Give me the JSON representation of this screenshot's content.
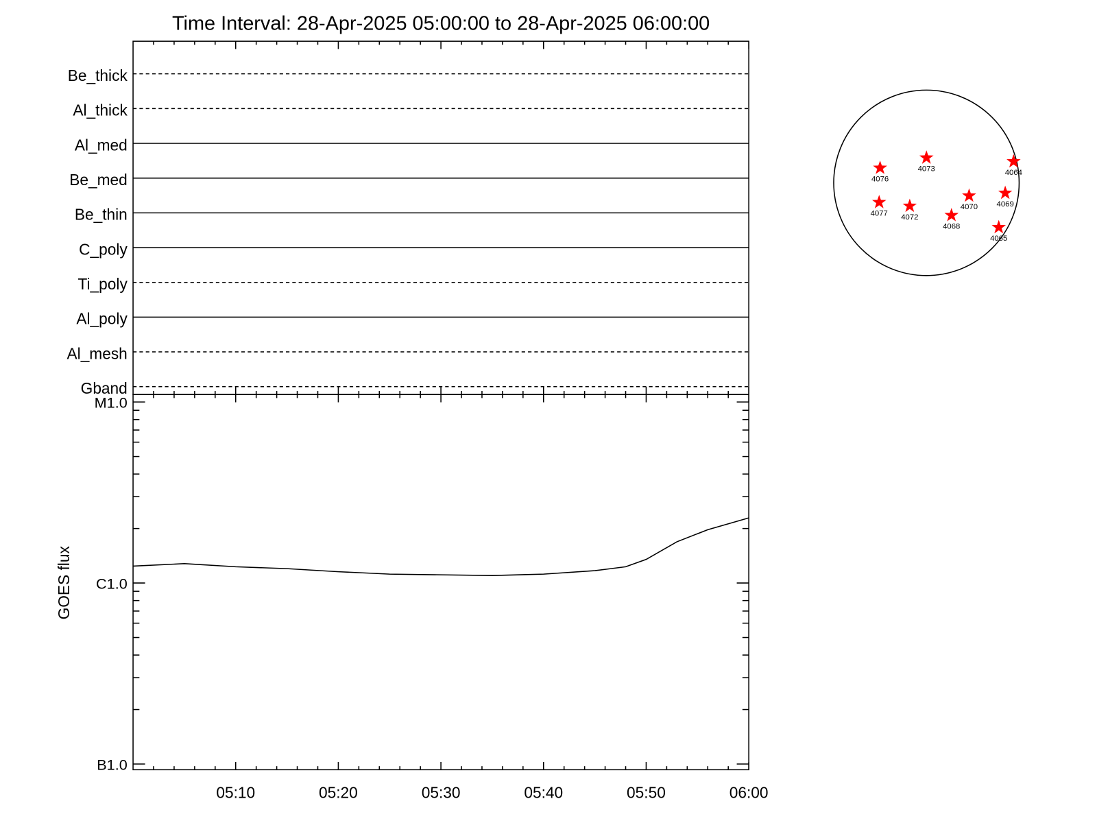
{
  "chart_data": [
    {
      "type": "timeline",
      "title": "Time Interval: 28-Apr-2025 05:00:00 to 28-Apr-2025 06:00:00",
      "categories": [
        "Be_thick",
        "Al_thick",
        "Al_med",
        "Be_med",
        "Be_thin",
        "C_poly",
        "Ti_poly",
        "Al_poly",
        "Al_mesh",
        "Gband"
      ],
      "line_styles": [
        "dashed",
        "dashed",
        "solid",
        "solid",
        "solid",
        "solid",
        "dashed",
        "solid",
        "dashed",
        "dashed"
      ]
    },
    {
      "type": "line",
      "ylabel": "GOES flux",
      "x": [
        "05:00",
        "05:05",
        "05:10",
        "05:15",
        "05:20",
        "05:25",
        "05:30",
        "05:35",
        "05:40",
        "05:45",
        "05:48",
        "05:50",
        "05:53",
        "05:56",
        "06:00"
      ],
      "values": [
        1.24e-06,
        1.28e-06,
        1.23e-06,
        1.2e-06,
        1.155e-06,
        1.12e-06,
        1.11e-06,
        1.1e-06,
        1.12e-06,
        1.17e-06,
        1.23e-06,
        1.35e-06,
        1.69e-06,
        1.97e-06,
        2.29e-06
      ],
      "color": "#000000",
      "xlim": [
        "05:00",
        "06:00"
      ],
      "xticks": [
        "05:10",
        "05:20",
        "05:30",
        "05:40",
        "05:50",
        "06:00"
      ],
      "xticks_minor": [
        "05:02",
        "05:04",
        "05:06",
        "05:08",
        "05:12",
        "05:14",
        "05:16",
        "05:18",
        "05:22",
        "05:24",
        "05:26",
        "05:28",
        "05:32",
        "05:34",
        "05:36",
        "05:38",
        "05:42",
        "05:44",
        "05:46",
        "05:48",
        "05:52",
        "05:54",
        "05:56",
        "05:58"
      ],
      "ylog": true,
      "ylim": [
        9.3e-08,
        1.1e-05
      ],
      "yticks": [
        {
          "value": 1e-07,
          "label": "B1.0"
        },
        {
          "value": 1e-06,
          "label": "C1.0"
        },
        {
          "value": 1e-05,
          "label": "M1.0"
        }
      ],
      "yticks_minor": [
        2e-07,
        3e-07,
        4e-07,
        5e-07,
        6e-07,
        7e-07,
        8e-07,
        9e-07,
        2e-06,
        3e-06,
        4e-06,
        5e-06,
        6e-06,
        7e-06,
        8e-06,
        9e-06
      ]
    },
    {
      "type": "disk",
      "xlim": [
        -1,
        1
      ],
      "ylim": [
        -1,
        1
      ],
      "marker_color": "#ff0000",
      "points": [
        {
          "label": "4076",
          "x": -0.5,
          "y": 0.16
        },
        {
          "label": "4073",
          "x": 0.0,
          "y": 0.27
        },
        {
          "label": "4064",
          "x": 0.94,
          "y": 0.23
        },
        {
          "label": "4077",
          "x": -0.51,
          "y": -0.21
        },
        {
          "label": "4072",
          "x": -0.18,
          "y": -0.25
        },
        {
          "label": "4070",
          "x": 0.46,
          "y": -0.14
        },
        {
          "label": "4069",
          "x": 0.85,
          "y": -0.11
        },
        {
          "label": "4068",
          "x": 0.27,
          "y": -0.35
        },
        {
          "label": "4065",
          "x": 0.78,
          "y": -0.48
        }
      ]
    }
  ]
}
